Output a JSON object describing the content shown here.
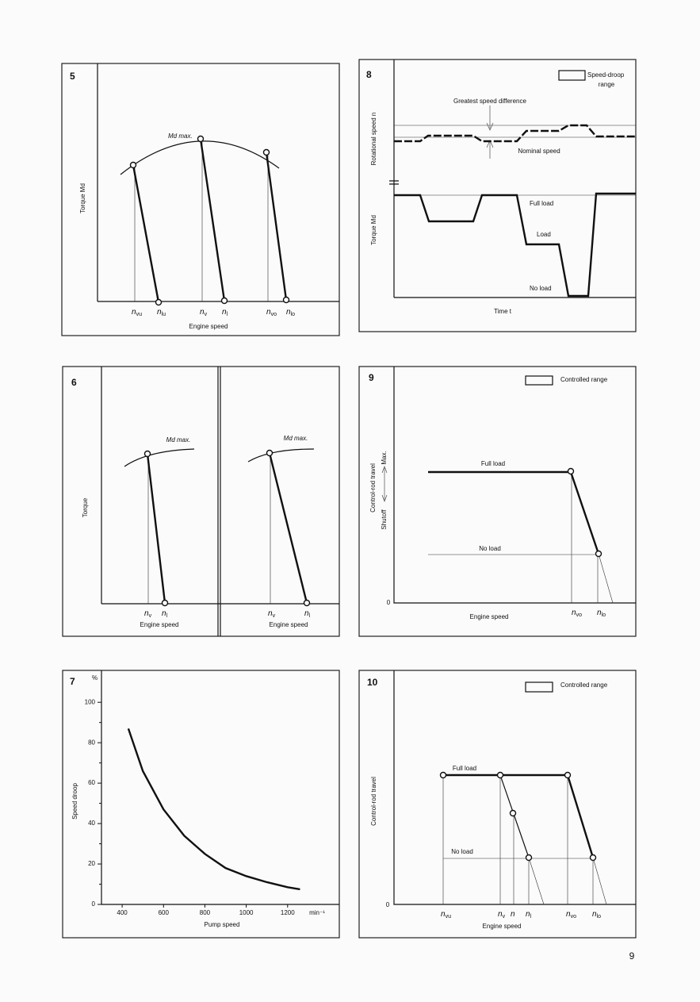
{
  "page_number": "9",
  "figures": [
    {
      "number": "5",
      "y_label": "Torque Md",
      "x_label": "Engine speed",
      "curve_label": "Md max.",
      "x_marks": [
        {
          "main": "n",
          "sub": "vu"
        },
        {
          "main": "n",
          "sub": "lu"
        },
        {
          "main": "n",
          "sub": "v"
        },
        {
          "main": "n",
          "sub": "l"
        },
        {
          "main": "n",
          "sub": "vo"
        },
        {
          "main": "n",
          "sub": "lo"
        }
      ]
    },
    {
      "number": "8",
      "legend": [
        "Speed-droop",
        "range"
      ],
      "speed_note": "Greatest speed difference",
      "nominal_note": "Nominal speed",
      "y_labels": [
        "Rotational speed n",
        "Torque Md"
      ],
      "annotations": [
        "Full load",
        "Load",
        "No load"
      ],
      "x_label": "Time t"
    },
    {
      "number": "6",
      "y_label": "Torque",
      "panels": [
        {
          "curve_label": "Md max.",
          "x_marks": [
            {
              "main": "n",
              "sub": "v"
            },
            {
              "main": "n",
              "sub": "l"
            }
          ],
          "x_label": "Engine speed"
        },
        {
          "curve_label": "Md max.",
          "x_marks": [
            {
              "main": "n",
              "sub": "v"
            },
            {
              "main": "n",
              "sub": "l"
            }
          ],
          "x_label": "Engine speed"
        }
      ]
    },
    {
      "number": "9",
      "legend": "Controlled range",
      "y_label": "Control-rod travel",
      "y_ends": [
        "Shutoff",
        "Max."
      ],
      "origin": "0",
      "annotations": [
        "Full load",
        "No load"
      ],
      "x_label": "Engine speed",
      "x_marks": [
        {
          "main": "n",
          "sub": "vo"
        },
        {
          "main": "n",
          "sub": "lo"
        }
      ]
    },
    {
      "number": "10",
      "legend": "Controlled range",
      "y_label": "Control-rod travel",
      "origin": "0",
      "annotations": [
        "Full load",
        "No load"
      ],
      "x_label": "Engine speed",
      "x_marks": [
        {
          "main": "n",
          "sub": "vu"
        },
        {
          "main": "n",
          "sub": "v"
        },
        {
          "main": "n",
          "sub": ""
        },
        {
          "main": "n",
          "sub": "l"
        },
        {
          "main": "n",
          "sub": "vo"
        },
        {
          "main": "n",
          "sub": "lo"
        }
      ]
    }
  ],
  "chart_data": {
    "type": "line",
    "number": "7",
    "y_unit": "%",
    "x_unit": "min⁻¹",
    "y_label": "Speed droop",
    "x_label": "Pump speed",
    "color": "#111111",
    "x": [
      430,
      500,
      600,
      700,
      800,
      900,
      1000,
      1100,
      1200,
      1260
    ],
    "values": [
      87,
      66,
      47,
      34,
      25,
      18,
      14,
      11,
      8.5,
      7.5
    ],
    "xlim": [
      300,
      1450
    ],
    "ylim": [
      0,
      115
    ],
    "xticks": [
      400,
      600,
      800,
      1000,
      1200
    ],
    "yticks": [
      0,
      20,
      40,
      60,
      80,
      100
    ],
    "yminor_ticks": [
      10,
      30,
      50,
      70,
      90
    ]
  }
}
